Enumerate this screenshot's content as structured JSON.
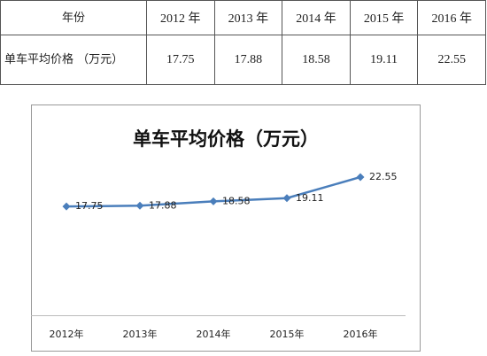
{
  "table": {
    "header": [
      "年份",
      "2012 年",
      "2013 年",
      "2014 年",
      "2015 年",
      "2016 年"
    ],
    "rows": [
      [
        "单车平均价格 （万元）",
        17.75,
        17.88,
        18.58,
        19.11,
        22.55
      ]
    ]
  },
  "chart_data": {
    "type": "line",
    "title": "单车平均价格（万元）",
    "categories": [
      "2012年",
      "2013年",
      "2014年",
      "2015年",
      "2016年"
    ],
    "series": [
      {
        "name": "单车平均价格（万元）",
        "color": "#4a7ebb",
        "values": [
          17.75,
          17.88,
          18.58,
          19.11,
          22.55
        ]
      }
    ],
    "ylim": [
      0,
      25
    ]
  }
}
